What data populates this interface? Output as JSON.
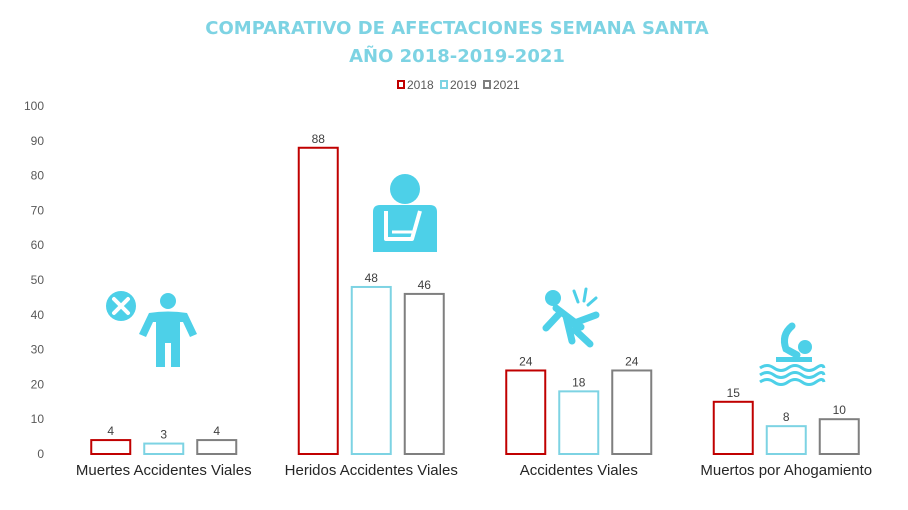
{
  "chart_data": {
    "type": "bar",
    "title_lines": [
      "COMPARATIVO DE AFECTACIONES SEMANA SANTA",
      "AÑO 2018-2019-2021"
    ],
    "categories": [
      "Muertes Accidentes Viales",
      "Heridos Accidentes Viales",
      "Accidentes Viales",
      "Muertos por Ahogamiento"
    ],
    "series": [
      {
        "name": "2018",
        "values": [
          4,
          88,
          24,
          15
        ],
        "color": "#c00000"
      },
      {
        "name": "2019",
        "values": [
          3,
          48,
          18,
          8
        ],
        "color": "#7dd3e3"
      },
      {
        "name": "2021",
        "values": [
          4,
          46,
          24,
          10
        ],
        "color": "#7f7f7f"
      }
    ],
    "ylim": [
      0,
      100
    ],
    "yticks": [
      0,
      10,
      20,
      30,
      40,
      50,
      60,
      70,
      80,
      90,
      100
    ],
    "grid": false,
    "legend_position": "top-center",
    "icon_color": "#4dd0e8",
    "icons": [
      "person-cross-icon",
      "injured-arm-icon",
      "person-falling-icon",
      "swimmer-icon"
    ]
  }
}
